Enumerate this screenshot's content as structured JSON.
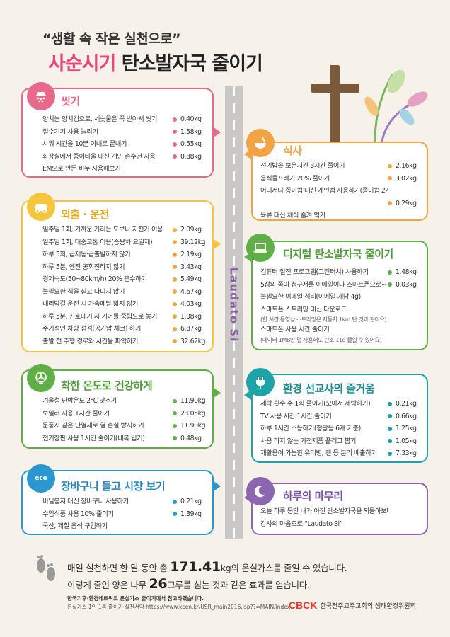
{
  "header": {
    "subtitle": "“생활 속 작은 실천으로”",
    "title_pink": "사순시기",
    "title_dark": "탄소발자국 줄이기"
  },
  "road_label": "Laudato Si",
  "colors": {
    "pink": "#e76a8a",
    "orange": "#f2a444",
    "yellow": "#f5c53b",
    "green": "#5fae46",
    "blue": "#2b97cf",
    "purple": "#8c66b0",
    "teal": "#1ea3a8"
  },
  "sections": {
    "wash": {
      "icon": "shower-icon",
      "title": "씻기",
      "items": [
        {
          "text": "양치는 양치컵으로, 세숫물은 꼭 받아서 씻기",
          "value": "0.40kg"
        },
        {
          "text": "절수기기 사용 늘리기",
          "value": "1.58kg"
        },
        {
          "text": "샤워 시간을 10분 이내로 끝내기",
          "value": "0.55kg"
        },
        {
          "text": "화장실에서 종이타올 대신 개인 손수건 사용",
          "value": "0.88kg"
        },
        {
          "text": "EM으로 만든 비누 사용해보기",
          "value": ""
        }
      ]
    },
    "meal": {
      "icon": "bowl-icon",
      "title": "식사",
      "items": [
        {
          "text": "전기밥솥 보온시간 3시간 줄이기",
          "value": "2.16kg"
        },
        {
          "text": "음식물쓰레기 20% 줄이기",
          "value": "3.02kg"
        },
        {
          "text": "어디서나 종이컵 대신 개인컵 사용하기(종이컵 2개 기준)",
          "value": ""
        },
        {
          "text": "",
          "value": "0.29kg"
        },
        {
          "text": "육류 대신 채식 즐겨 먹기",
          "value": ""
        }
      ]
    },
    "drive": {
      "icon": "car-icon",
      "title": "외출 · 운전",
      "items": [
        {
          "text": "일주일 1회, 가까운 거리는 도보나 자전거 이용",
          "value": "2.09kg"
        },
        {
          "text": "일주일 1회, 대중교통 이용(승용차 요일제)",
          "value": "39.12kg"
        },
        {
          "text": "하루 5회, 급제동·급출발하지 않기",
          "value": "2.19kg"
        },
        {
          "text": "하루 5분, 엔진 공회전하지 않기",
          "value": "3.43kg"
        },
        {
          "text": "경제속도(50~80km/h) 20% 준수하기",
          "value": "5.49kg"
        },
        {
          "text": "불필요한 짐을 싣고 다니지 않기",
          "value": "4.67kg"
        },
        {
          "text": "내리막길 운전 시 가속페달 밟지 않기",
          "value": "4.03kg"
        },
        {
          "text": "하루 5분, 신호대기 시 기어를 중립으로 놓기",
          "value": "1.08kg"
        },
        {
          "text": "주기적인 차량 점검(공기압 체크) 하기",
          "value": "6.87kg"
        },
        {
          "text": "출발 전 주행 경로와 시간을 파악하기",
          "value": "32.62kg"
        }
      ]
    },
    "digital": {
      "icon": "laptop-icon",
      "title": "디지털 탄소발자국 줄이기",
      "items": [
        {
          "text": "컴퓨터 절전 프로그램(그린터치) 사용하기",
          "value": "1.48kg",
          "sub": ""
        },
        {
          "text": "5장의 종이 청구서를 이메일이나 스마트폰으로~",
          "value": "0.03kg",
          "sub": ""
        },
        {
          "text": "불필요한 이메일 정리(이메일 개당 4g)",
          "value": "",
          "sub": ""
        },
        {
          "text": "스마트폰 스트리밍 대신 다운로드",
          "value": "",
          "sub": "(한 시간 동영상 스트리밍은 자동차 1km 탄 것과 같아요)"
        },
        {
          "text": "스마트폰 사용 시간 줄이기",
          "value": "",
          "sub": "(데이터 1MB만 덜 사용해도 탄소 11g 줄일 수 있어요)"
        }
      ]
    },
    "temp": {
      "icon": "fan-icon",
      "title": "착한 온도로 건강하게",
      "items": [
        {
          "text": "겨울철 난방온도 2℃ 낮추기",
          "value": "11.90kg"
        },
        {
          "text": "보일러 사용 1시간 줄이기",
          "value": "23.05kg"
        },
        {
          "text": "문풍지 같은 단열재로 열 손실 방지하기",
          "value": "11.90kg"
        },
        {
          "text": "전기장판 사용 1시간 줄이기(내복 입기)",
          "value": "0.48kg"
        }
      ]
    },
    "mission": {
      "icon": "plug-icon",
      "title": "환경 선교사의 즐거움",
      "items": [
        {
          "text": "세탁 횟수 주 1회 줄이기(모아서 세탁하기)",
          "value": "0.21kg"
        },
        {
          "text": "TV 사용 시간 1시간 줄이기",
          "value": "0.66kg"
        },
        {
          "text": "하루 1시간 소등하기(형광등 6개 기준)",
          "value": "1.25kg"
        },
        {
          "text": "사용 하지 않는 가전제품 플러그 뽑기",
          "value": "1.05kg"
        },
        {
          "text": "재활용이 가능한 유리병, 캔 등 분리 배출하기",
          "value": "7.33kg"
        }
      ]
    },
    "shopping": {
      "icon": "eco-bag-icon",
      "icon_label": "eco",
      "title": "장바구니 들고 시장 보기",
      "items": [
        {
          "text": "비닐봉지 대신 장바구니 사용하기",
          "value": "0.21kg"
        },
        {
          "text": "수입식품 사용 10% 줄이기",
          "value": "1.39kg"
        },
        {
          "text": "국산, 제철 음식 구입하기",
          "value": ""
        }
      ]
    },
    "finish": {
      "icon": "moon-icon",
      "title": "하루의 마무리",
      "items": [
        {
          "text": "오늘 하루 동안 내가 아낀 탄소발자국을 되돌아보며",
          "value": ""
        },
        {
          "text": "감사의 마음으로 “Laudato Si”",
          "value": ""
        }
      ]
    }
  },
  "summary": {
    "line1_pre": "매일 실천하면 한 달 동안 총",
    "line1_num": "171.41",
    "line1_post": "kg의 온실가스를 줄일 수 있습니다.",
    "line2_pre": "이렇게 줄인 양은 나무",
    "line2_num": "26",
    "line2_post": "그루를 심는 것과 같은 효과를 얻습니다."
  },
  "footnote": {
    "line1": "한국기후·환경네트워크 온실가스 줄이기에서 참고하였습니다.",
    "line2": "온실가스 1인 1톤 줄이기 실천서약 https://www.kcen.kr/USR_main2016.jsp??=MAIN/index"
  },
  "publisher": {
    "logo": "CBCK",
    "name": "한국천주교주교회의 생태환경위원회"
  }
}
